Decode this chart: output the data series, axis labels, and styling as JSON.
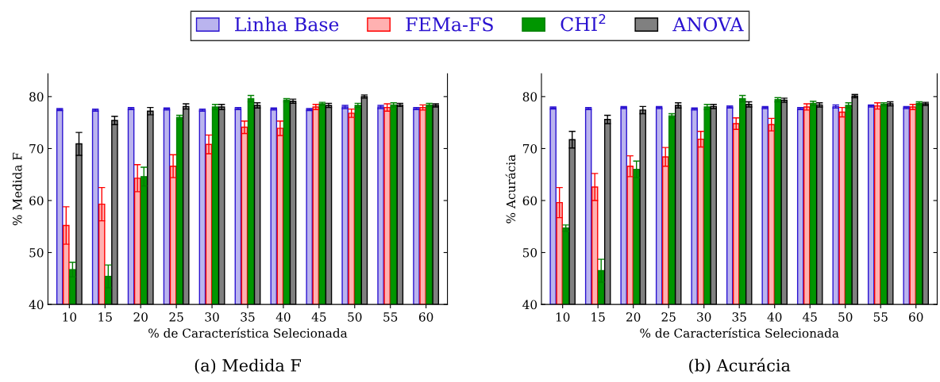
{
  "chart_data": [
    {
      "type": "bar",
      "title": "(a) Medida F",
      "xlabel": "% de Característica Selecionada",
      "ylabel": "% Medida F",
      "categories": [
        "10",
        "15",
        "20",
        "25",
        "30",
        "35",
        "40",
        "45",
        "50",
        "55",
        "60"
      ],
      "ylim": [
        40,
        84.4
      ],
      "yticks": [
        40,
        50,
        60,
        70,
        80
      ],
      "legend": "top",
      "series": [
        {
          "name": "Linha Base",
          "color": "#bab4ee",
          "values": [
            77.5,
            77.4,
            77.7,
            77.6,
            77.4,
            77.7,
            77.6,
            77.5,
            78.0,
            78.0,
            77.7
          ],
          "errors": [
            0.2,
            0.2,
            0.2,
            0.2,
            0.2,
            0.2,
            0.2,
            0.2,
            0.3,
            0.3,
            0.2
          ]
        },
        {
          "name": "FEMa-FS",
          "color": "#ffb1b1",
          "values": [
            55.2,
            59.3,
            64.3,
            66.6,
            70.8,
            74.1,
            73.9,
            78.0,
            76.8,
            77.9,
            77.9
          ],
          "errors": [
            3.6,
            3.2,
            2.6,
            2.2,
            1.8,
            1.2,
            1.4,
            0.5,
            0.8,
            0.7,
            0.5
          ]
        },
        {
          "name": "CHI$^{2}$",
          "color": "#009600",
          "values": [
            46.7,
            45.4,
            64.6,
            76.0,
            78.0,
            79.6,
            79.3,
            78.6,
            78.3,
            78.4,
            78.4
          ],
          "errors": [
            1.4,
            2.2,
            1.8,
            0.4,
            0.5,
            0.6,
            0.3,
            0.3,
            0.4,
            0.4,
            0.3
          ]
        },
        {
          "name": "ANOVA",
          "color": "#808080",
          "values": [
            70.9,
            75.4,
            77.2,
            78.1,
            78.0,
            78.3,
            79.1,
            78.3,
            80.0,
            78.4,
            78.3
          ],
          "errors": [
            2.2,
            0.8,
            0.7,
            0.5,
            0.5,
            0.5,
            0.4,
            0.4,
            0.3,
            0.3,
            0.3
          ]
        }
      ]
    },
    {
      "type": "bar",
      "title": "(b) Acurácia",
      "xlabel": "% de Característica Selecionada",
      "ylabel": "% Acurácia",
      "categories": [
        "10",
        "15",
        "20",
        "25",
        "30",
        "35",
        "40",
        "45",
        "50",
        "55",
        "60"
      ],
      "ylim": [
        40,
        84.4
      ],
      "yticks": [
        40,
        50,
        60,
        70,
        80
      ],
      "series": [
        {
          "color": "#bab4ee",
          "values": [
            77.8,
            77.7,
            77.9,
            77.9,
            77.6,
            78.0,
            77.9,
            77.7,
            78.1,
            78.2,
            77.9
          ],
          "errors": [
            0.2,
            0.2,
            0.2,
            0.2,
            0.2,
            0.2,
            0.2,
            0.2,
            0.3,
            0.2,
            0.2
          ]
        },
        {
          "color": "#ffb1b1",
          "values": [
            59.6,
            62.6,
            66.6,
            68.4,
            71.8,
            74.8,
            74.6,
            78.0,
            77.0,
            78.2,
            78.0
          ],
          "errors": [
            2.9,
            2.6,
            2.0,
            1.8,
            1.5,
            1.1,
            1.2,
            0.6,
            0.9,
            0.6,
            0.5
          ]
        },
        {
          "color": "#009600",
          "values": [
            54.7,
            46.5,
            66.0,
            76.3,
            78.0,
            79.6,
            79.4,
            78.7,
            78.3,
            78.5,
            78.7
          ],
          "errors": [
            0.6,
            2.2,
            1.6,
            0.4,
            0.5,
            0.6,
            0.4,
            0.4,
            0.5,
            0.3,
            0.3
          ]
        },
        {
          "color": "#808080",
          "values": [
            71.7,
            75.6,
            77.4,
            78.3,
            78.1,
            78.5,
            79.3,
            78.4,
            80.1,
            78.6,
            78.6
          ],
          "errors": [
            1.6,
            0.8,
            0.7,
            0.5,
            0.4,
            0.5,
            0.4,
            0.4,
            0.3,
            0.4,
            0.3
          ]
        }
      ]
    }
  ]
}
